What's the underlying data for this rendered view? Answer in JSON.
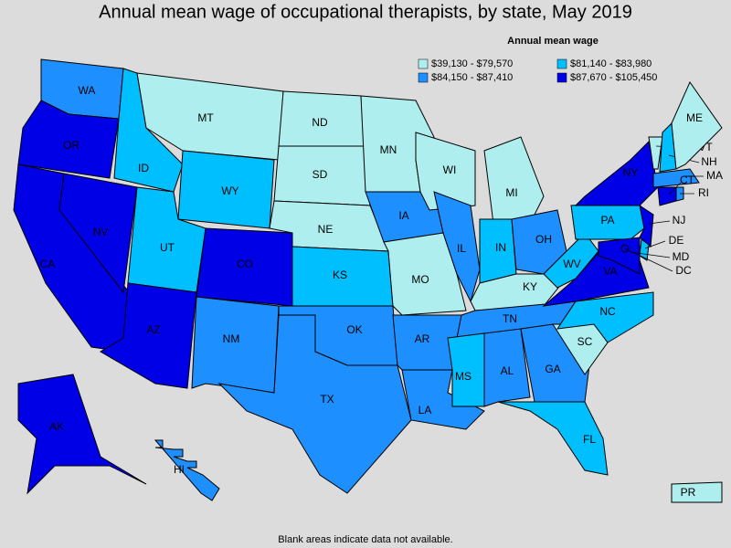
{
  "title": "Annual mean wage of occupational therapists, by state, May 2019",
  "legend": {
    "title": "Annual mean wage",
    "items": [
      {
        "label": "$39,130 - $79,570",
        "color": "#aeeeee"
      },
      {
        "label": "$81,140 - $83,980",
        "color": "#00bfff"
      },
      {
        "label": "$84,150 - $87,410",
        "color": "#1e8fff"
      },
      {
        "label": "$87,670 - $105,450",
        "color": "#0000e6"
      }
    ]
  },
  "states": [
    {
      "label": "WA",
      "class": 2
    },
    {
      "label": "OR",
      "class": 3
    },
    {
      "label": "CA",
      "class": 3
    },
    {
      "label": "NV",
      "class": 3
    },
    {
      "label": "ID",
      "class": 1
    },
    {
      "label": "MT",
      "class": 0
    },
    {
      "label": "WY",
      "class": 1
    },
    {
      "label": "UT",
      "class": 1
    },
    {
      "label": "AZ",
      "class": 3
    },
    {
      "label": "CO",
      "class": 3
    },
    {
      "label": "NM",
      "class": 2
    },
    {
      "label": "ND",
      "class": 0
    },
    {
      "label": "SD",
      "class": 0
    },
    {
      "label": "NE",
      "class": 0
    },
    {
      "label": "KS",
      "class": 1
    },
    {
      "label": "OK",
      "class": 2
    },
    {
      "label": "TX",
      "class": 2
    },
    {
      "label": "MN",
      "class": 0
    },
    {
      "label": "IA",
      "class": 2
    },
    {
      "label": "MO",
      "class": 0
    },
    {
      "label": "AR",
      "class": 2
    },
    {
      "label": "LA",
      "class": 2
    },
    {
      "label": "WI",
      "class": 0
    },
    {
      "label": "IL",
      "class": 2
    },
    {
      "label": "MI",
      "class": 0
    },
    {
      "label": "IN",
      "class": 1
    },
    {
      "label": "OH",
      "class": 2
    },
    {
      "label": "KY",
      "class": 0
    },
    {
      "label": "TN",
      "class": 2
    },
    {
      "label": "MS",
      "class": 1
    },
    {
      "label": "AL",
      "class": 2
    },
    {
      "label": "GA",
      "class": 2
    },
    {
      "label": "FL",
      "class": 1
    },
    {
      "label": "SC",
      "class": 0
    },
    {
      "label": "NC",
      "class": 1
    },
    {
      "label": "VA",
      "class": 3
    },
    {
      "label": "WV",
      "class": 1
    },
    {
      "label": "PA",
      "class": 1
    },
    {
      "label": "NY",
      "class": 3
    },
    {
      "label": "VT",
      "class": 0
    },
    {
      "label": "NH",
      "class": 1
    },
    {
      "label": "ME",
      "class": 0
    },
    {
      "label": "MA",
      "class": 2
    },
    {
      "label": "CT",
      "class": 3
    },
    {
      "label": "RI",
      "class": 2
    },
    {
      "label": "NJ",
      "class": 3
    },
    {
      "label": "DE",
      "class": 1
    },
    {
      "label": "MD",
      "class": 3
    },
    {
      "label": "DC",
      "class": 3
    },
    {
      "label": "AK",
      "class": 3
    },
    {
      "label": "HI",
      "class": 2
    },
    {
      "label": "PR",
      "class": 0
    }
  ],
  "footnote": "Blank areas indicate data not available."
}
